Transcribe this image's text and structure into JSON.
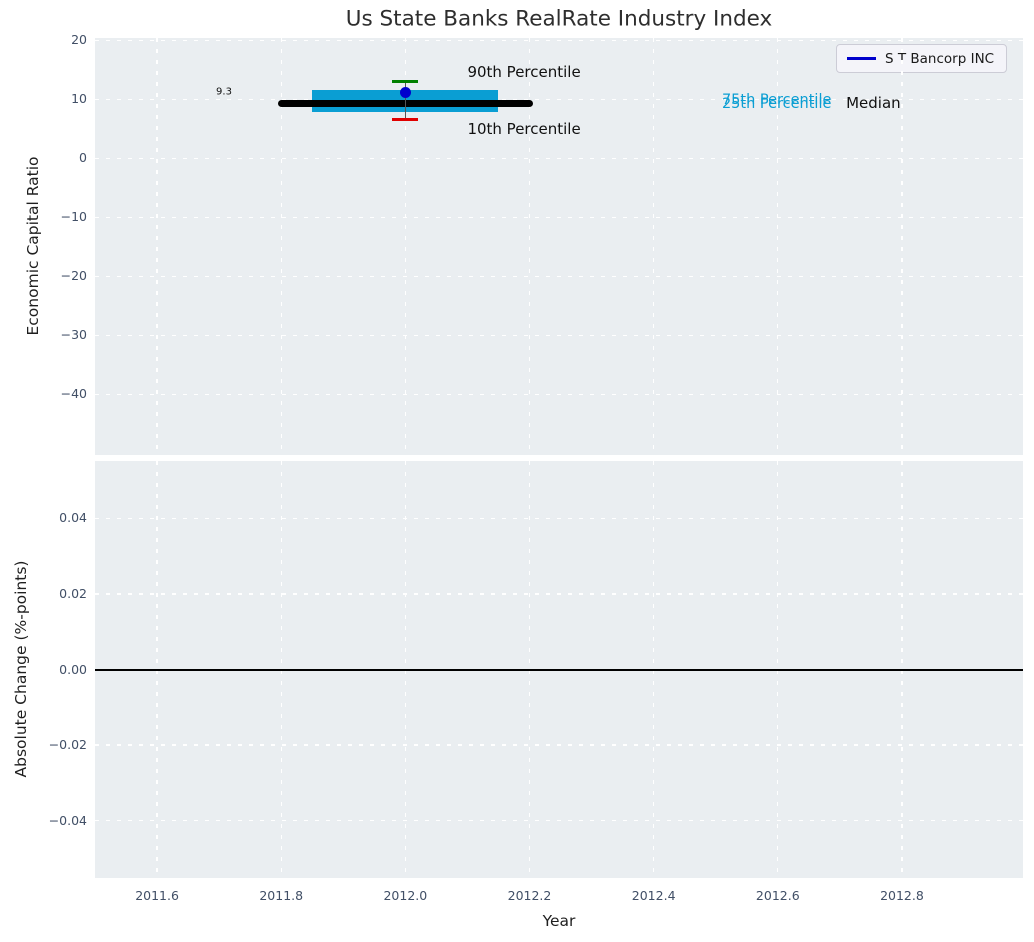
{
  "title": "Us State Banks RealRate Industry Index",
  "legend": {
    "label": "S T Bancorp INC"
  },
  "colors": {
    "figure_bg": "#ffffff",
    "axes_bg": "#eaeef1",
    "grid": "#ffffff",
    "tick_label": "#414f66",
    "title": "#2e2e2e",
    "axis_label": "#1f1f1f",
    "band": "#0a9ed3",
    "median_line": "#000000",
    "marker": "#0000cd",
    "err_cap_top": "#008000",
    "err_cap_bottom": "#e00000",
    "err_line": "#555555",
    "zero_line": "#000000",
    "legend_bg": "#f4f4f9",
    "legend_border": "#ccccd6",
    "legend_line": "#0000cc"
  },
  "chart_data": {
    "type": "errorbar-band",
    "title": "Us State Banks RealRate Industry Index",
    "xlabel": "Year",
    "grid": "white dashed on light-gray axes, both subplots",
    "legend_position": "upper right of top subplot",
    "top": {
      "ylabel": "Economic Capital Ratio",
      "xlim": [
        2011.5,
        2012.995
      ],
      "ylim": [
        -50.3,
        20.4
      ],
      "xticks": {
        "values": [
          2011.6,
          2011.8,
          2012.0,
          2012.2,
          2012.4,
          2012.6,
          2012.8
        ],
        "labels": [
          "2011.6",
          "2011.8",
          "2012.0",
          "2012.2",
          "2012.4",
          "2012.6",
          "2012.8"
        ]
      },
      "yticks": {
        "values": [
          20,
          10,
          0,
          -10,
          -20,
          -30,
          -40
        ],
        "labels": [
          "20",
          "10",
          "0",
          "−10",
          "−20",
          "−30",
          "−40"
        ]
      },
      "series": {
        "name": "S T Bancorp INC",
        "x": 2012.0,
        "value": 11.1,
        "p90": 13.1,
        "p75": 11.6,
        "median": 9.3,
        "p25": 7.8,
        "p10": 6.5,
        "median_label": "9.3",
        "band_x": [
          2011.85,
          2012.15
        ],
        "median_x": [
          2011.8,
          2012.2
        ]
      },
      "annotations": [
        {
          "text": "90th Percentile",
          "x": 2012.1,
          "y": 14.6,
          "color": "#111111",
          "size": 15
        },
        {
          "text": "10th Percentile",
          "x": 2012.1,
          "y": 5.0,
          "color": "#111111",
          "size": 15
        },
        {
          "text": "75th Percentile",
          "x": 2012.51,
          "y": 9.9,
          "color": "#0a9ed3",
          "size": 14.5
        },
        {
          "text": "25th Percentile",
          "x": 2012.51,
          "y": 9.2,
          "color": "#0a9ed3",
          "size": 14.5
        },
        {
          "text": "Median",
          "x": 2012.71,
          "y": 9.4,
          "color": "#111111",
          "size": 15
        },
        {
          "text": "9.3",
          "x": 2011.695,
          "y": 11.3,
          "color": "#111111",
          "size": 10
        }
      ]
    },
    "bottom": {
      "ylabel": "Absolute Change (%-points)",
      "xlabel": "Year",
      "xlim": [
        2011.5,
        2012.995
      ],
      "ylim": [
        -0.0552,
        0.0552
      ],
      "yticks": {
        "values": [
          0.04,
          0.02,
          0,
          -0.02,
          -0.04
        ],
        "labels": [
          "0.04",
          "0.02",
          "0.00",
          "−0.02",
          "−0.04"
        ]
      },
      "zero_line_y": 0.0
    }
  }
}
